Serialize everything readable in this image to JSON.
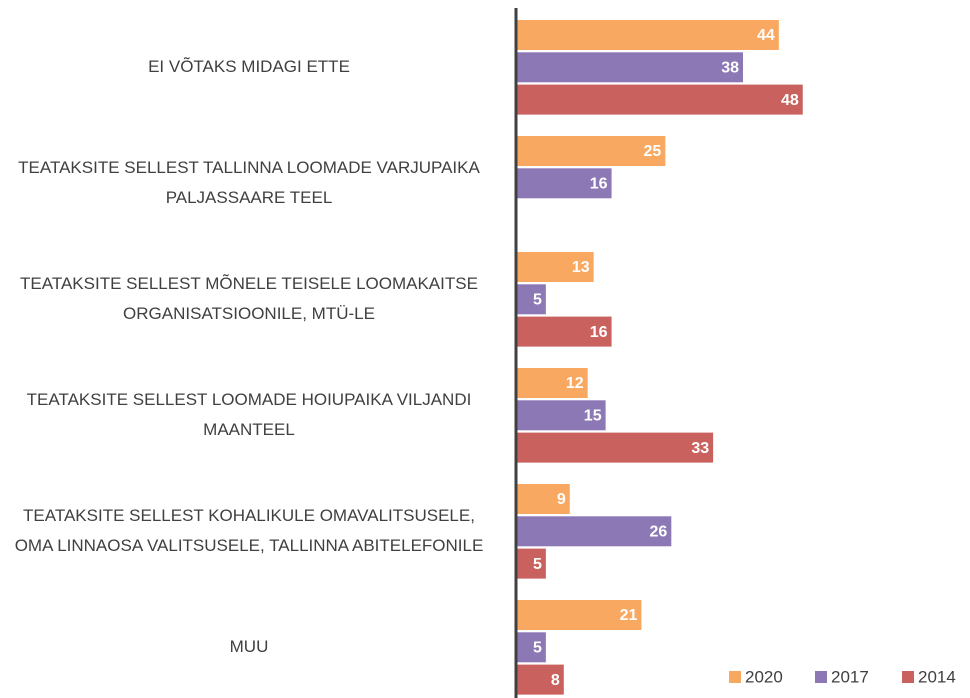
{
  "chart_data": {
    "type": "hbar",
    "categories": [
      "EI VÕTAKS MIDAGI ETTE",
      "TEATAKSITE SELLEST TALLINNA LOOMADE VARJUPAIKA PALJASSAARE TEEL",
      "TEATAKSITE SELLEST MÕNELE TEISELE LOOMAKAITSE ORGANISATSIOONILE, MTÜ-LE",
      "TEATAKSITE SELLEST LOOMADE HOIUPAIKA VILJANDI MAANTEEL",
      "TEATAKSITE SELLEST KOHALIKULE OMAVALITSUSELE, OMA LINNAOSA VALITSUSELE, TALLINNA ABITELEFONILE",
      "MUU"
    ],
    "series": [
      {
        "name": "2020",
        "color": "#f9a862",
        "values": [
          44,
          25,
          13,
          12,
          9,
          21
        ]
      },
      {
        "name": "2017",
        "color": "#8c78b4",
        "values": [
          38,
          16,
          5,
          15,
          26,
          5
        ]
      },
      {
        "name": "2014",
        "color": "#c9625f",
        "values": [
          48,
          null,
          16,
          33,
          5,
          8
        ]
      }
    ],
    "xlim": [
      0,
      76
    ],
    "legend": "bottom-right"
  }
}
